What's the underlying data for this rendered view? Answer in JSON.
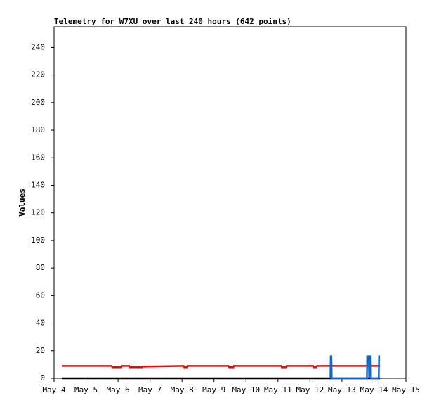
{
  "chart_data": {
    "type": "line",
    "title": "Telemetry for W7XU over last 240 hours (642 points)",
    "y_label": "Values",
    "xlim": [
      4,
      15
    ],
    "xticks": [
      {
        "value": 4,
        "label": "May 4"
      },
      {
        "value": 5,
        "label": "May 5"
      },
      {
        "value": 6,
        "label": "May 6"
      },
      {
        "value": 7,
        "label": "May 7"
      },
      {
        "value": 8,
        "label": "May 8"
      },
      {
        "value": 9,
        "label": "May 9"
      },
      {
        "value": 10,
        "label": "May 10"
      },
      {
        "value": 11,
        "label": "May 11"
      },
      {
        "value": 12,
        "label": "May 12"
      },
      {
        "value": 13,
        "label": "May 13"
      },
      {
        "value": 14,
        "label": "May 14"
      },
      {
        "value": 15,
        "label": "May 15"
      }
    ],
    "ylim": [
      0,
      255
    ],
    "yticks": [
      0,
      20,
      40,
      60,
      80,
      100,
      120,
      140,
      160,
      180,
      200,
      220,
      240
    ],
    "grid": false,
    "series": [
      {
        "color": "#000000",
        "x": [
          4.24,
          14.19
        ],
        "values": [
          0,
          0
        ]
      },
      {
        "color": "#ff0000",
        "x": [
          4.24,
          5.8,
          5.82,
          6.1,
          6.12,
          6.35,
          6.37,
          6.75,
          6.77,
          8.05,
          8.07,
          8.15,
          8.17,
          9.45,
          9.47,
          9.6,
          9.62,
          11.1,
          11.12,
          11.25,
          11.27,
          12.1,
          12.12,
          12.2,
          12.22,
          14.19
        ],
        "values": [
          9,
          9,
          8,
          8,
          9,
          9,
          8,
          8,
          8.5,
          9,
          8,
          8,
          9,
          9,
          8,
          8,
          9,
          9,
          8,
          8,
          9,
          9,
          8,
          8,
          9,
          9
        ]
      },
      {
        "color": "#1565c0",
        "x": [
          12.64,
          12.65,
          12.67,
          12.68,
          13.78,
          13.79,
          13.84,
          13.85,
          13.87,
          13.9,
          13.91,
          14.15,
          14.16,
          14.19
        ],
        "values": [
          0,
          16,
          16,
          0,
          0,
          16,
          16,
          0,
          16,
          16,
          0,
          0,
          16,
          16
        ]
      }
    ]
  }
}
